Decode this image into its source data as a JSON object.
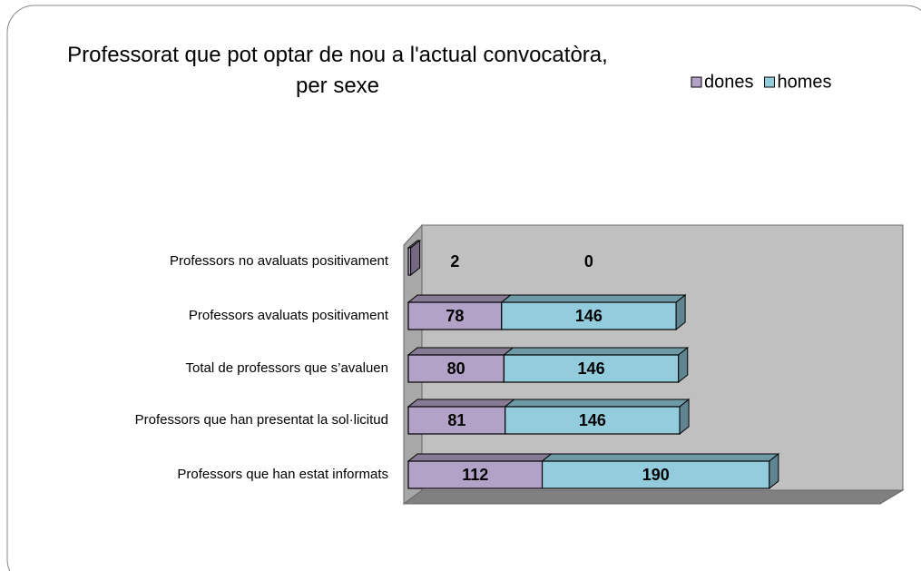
{
  "chart_data": {
    "type": "bar3d_stacked_horizontal",
    "title": "Professorat que pot optar de nou a l'actual convocatòra, per sexe",
    "categories": [
      "Professors no avaluats positivament",
      "Professors avaluats positivament",
      "Total de professors que s’avaluen",
      "Professors que han presentat la sol·licitud",
      "Professors que han estat informats"
    ],
    "series": [
      {
        "name": "dones",
        "color": "#b3a2c7",
        "values": [
          2,
          78,
          80,
          81,
          112
        ]
      },
      {
        "name": "homes",
        "color": "#93cddd",
        "values": [
          0,
          146,
          146,
          146,
          190
        ]
      }
    ],
    "xlim": [
      0,
      400
    ],
    "legend": "top-right"
  }
}
